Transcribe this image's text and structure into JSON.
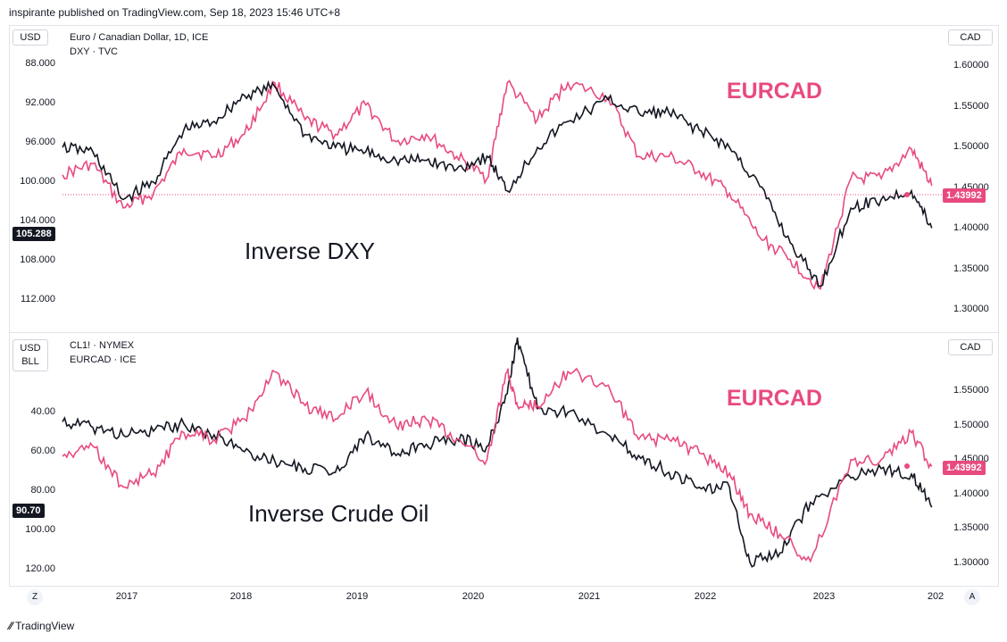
{
  "header": {
    "published": "inspirante published on TradingView.com, Sep 18, 2023 15:46 UTC+8"
  },
  "footer": {
    "brand": "TradingView"
  },
  "buttons": {
    "zoom": "Z",
    "auto": "A"
  },
  "colors": {
    "eurcad": "#e84a7f",
    "overlay": "#131722",
    "tag_dark": "#131722"
  },
  "chart_data": [
    {
      "type": "line",
      "legend": [
        "Euro / Canadian Dollar, 1D, ICE",
        "DXY · TVC"
      ],
      "left_unit": "USD",
      "right_unit": "CAD",
      "left_axis": {
        "inverted": true,
        "ticks": [
          "88.000",
          "92.000",
          "96.000",
          "100.000",
          "104.000",
          "108.000",
          "112.000"
        ],
        "last_value": "105.288"
      },
      "right_axis": {
        "ticks": [
          "1.60000",
          "1.55000",
          "1.50000",
          "1.45000",
          "1.40000",
          "1.35000",
          "1.30000"
        ],
        "last_value": "1.43992"
      },
      "annotations": [
        "EURCAD",
        "Inverse DXY"
      ],
      "x": [
        "2016-07",
        "2016-10",
        "2017-01",
        "2017-04",
        "2017-07",
        "2017-10",
        "2018-01",
        "2018-04",
        "2018-07",
        "2018-10",
        "2019-01",
        "2019-04",
        "2019-07",
        "2019-10",
        "2020-01",
        "2020-03",
        "2020-06",
        "2020-09",
        "2021-01",
        "2021-04",
        "2021-07",
        "2021-10",
        "2022-01",
        "2022-04",
        "2022-07",
        "2022-10",
        "2023-01",
        "2023-04",
        "2023-07",
        "2023-09"
      ],
      "series": [
        {
          "name": "EURCAD",
          "values": [
            1.455,
            1.47,
            1.41,
            1.43,
            1.49,
            1.48,
            1.51,
            1.58,
            1.53,
            1.51,
            1.55,
            1.5,
            1.51,
            1.48,
            1.45,
            1.58,
            1.53,
            1.58,
            1.56,
            1.48,
            1.48,
            1.46,
            1.43,
            1.37,
            1.34,
            1.3,
            1.45,
            1.45,
            1.49,
            1.44
          ]
        },
        {
          "name": "DXY",
          "values": [
            96.0,
            96.5,
            102.0,
            100.0,
            94.0,
            93.0,
            90.0,
            89.0,
            94.5,
            96.0,
            96.5,
            97.5,
            97.5,
            98.5,
            97.0,
            101.0,
            96.0,
            93.0,
            90.5,
            92.0,
            92.0,
            94.0,
            96.0,
            100.5,
            107.0,
            112.0,
            103.0,
            102.0,
            101.0,
            105.3
          ]
        }
      ]
    },
    {
      "type": "line",
      "legend": [
        "CL1! · NYMEX",
        "EURCAD · ICE"
      ],
      "left_unit": "USD",
      "left_unit2": "BLL",
      "right_unit": "CAD",
      "left_axis": {
        "inverted": true,
        "ticks": [
          "40.00",
          "60.00",
          "80.00",
          "100.00",
          "120.00"
        ],
        "last_value": "90.70"
      },
      "right_axis": {
        "ticks": [
          "1.55000",
          "1.50000",
          "1.45000",
          "1.40000",
          "1.35000",
          "1.30000"
        ],
        "last_value": "1.43992"
      },
      "annotations": [
        "EURCAD",
        "Inverse Crude Oil"
      ],
      "x": [
        "2016-07",
        "2016-10",
        "2017-01",
        "2017-04",
        "2017-07",
        "2017-10",
        "2018-01",
        "2018-04",
        "2018-07",
        "2018-10",
        "2019-01",
        "2019-04",
        "2019-07",
        "2019-10",
        "2020-01",
        "2020-03",
        "2020-04",
        "2020-06",
        "2020-09",
        "2021-01",
        "2021-04",
        "2021-07",
        "2021-10",
        "2022-01",
        "2022-03",
        "2022-06",
        "2022-09",
        "2023-01",
        "2023-04",
        "2023-07",
        "2023-09"
      ],
      "series": [
        {
          "name": "CL1!",
          "values": [
            45,
            48,
            52,
            50,
            46,
            52,
            61,
            66,
            70,
            72,
            52,
            63,
            57,
            54,
            58,
            30,
            0,
            38,
            40,
            52,
            63,
            72,
            80,
            80,
            120,
            115,
            88,
            75,
            70,
            73,
            90.7
          ]
        },
        {
          "name": "EURCAD",
          "values": [
            1.455,
            1.47,
            1.41,
            1.43,
            1.49,
            1.48,
            1.51,
            1.58,
            1.53,
            1.51,
            1.55,
            1.5,
            1.51,
            1.48,
            1.45,
            1.58,
            1.53,
            1.53,
            1.58,
            1.56,
            1.48,
            1.48,
            1.46,
            1.43,
            1.37,
            1.34,
            1.3,
            1.45,
            1.45,
            1.49,
            1.44
          ]
        }
      ]
    }
  ],
  "x_axis": {
    "ticks": [
      "2017",
      "2018",
      "2019",
      "2020",
      "2021",
      "2022",
      "2023",
      "202"
    ]
  }
}
